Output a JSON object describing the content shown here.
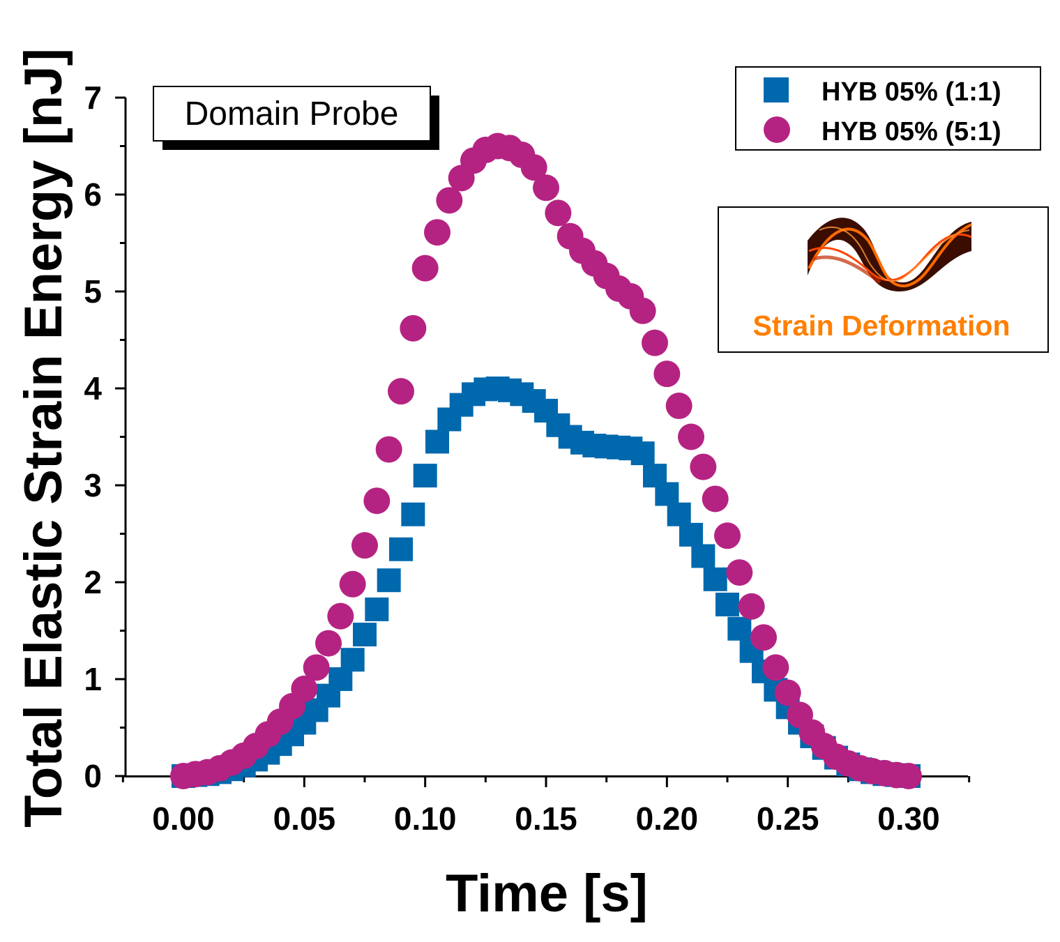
{
  "chart_data": {
    "type": "scatter",
    "xlabel": "Time [s]",
    "ylabel": "Total Elastic Strain Energy [nJ]",
    "xlim": [
      -0.025,
      0.325
    ],
    "ylim": [
      0,
      7
    ],
    "xticks": [
      0.0,
      0.05,
      0.1,
      0.15,
      0.2,
      0.25,
      0.3
    ],
    "xtick_labels": [
      "0.00",
      "0.05",
      "0.10",
      "0.15",
      "0.20",
      "0.25",
      "0.30"
    ],
    "yticks": [
      0,
      1,
      2,
      3,
      4,
      5,
      6,
      7
    ],
    "ytick_labels": [
      "0",
      "1",
      "2",
      "3",
      "4",
      "5",
      "6",
      "7"
    ],
    "legend_position": "top-right",
    "x": [
      0.0,
      0.005,
      0.01,
      0.015,
      0.02,
      0.025,
      0.03,
      0.035,
      0.04,
      0.045,
      0.05,
      0.055,
      0.06,
      0.065,
      0.07,
      0.075,
      0.08,
      0.085,
      0.09,
      0.095,
      0.1,
      0.105,
      0.11,
      0.115,
      0.12,
      0.125,
      0.13,
      0.135,
      0.14,
      0.145,
      0.15,
      0.155,
      0.16,
      0.165,
      0.17,
      0.175,
      0.18,
      0.185,
      0.19,
      0.195,
      0.2,
      0.205,
      0.21,
      0.215,
      0.22,
      0.225,
      0.23,
      0.235,
      0.24,
      0.245,
      0.25,
      0.255,
      0.26,
      0.265,
      0.27,
      0.275,
      0.28,
      0.285,
      0.29,
      0.295,
      0.3
    ],
    "series": [
      {
        "name": "HYB 05% (1:1)",
        "marker": "square",
        "color": "#0068AD",
        "values": [
          0.0,
          0.01,
          0.02,
          0.04,
          0.07,
          0.11,
          0.17,
          0.24,
          0.33,
          0.43,
          0.55,
          0.68,
          0.83,
          1.0,
          1.2,
          1.46,
          1.72,
          2.02,
          2.34,
          2.7,
          3.1,
          3.45,
          3.68,
          3.83,
          3.94,
          3.99,
          4.0,
          3.98,
          3.94,
          3.87,
          3.77,
          3.62,
          3.5,
          3.44,
          3.41,
          3.4,
          3.39,
          3.38,
          3.33,
          3.1,
          2.91,
          2.7,
          2.49,
          2.27,
          2.03,
          1.77,
          1.52,
          1.29,
          1.08,
          0.89,
          0.71,
          0.55,
          0.41,
          0.29,
          0.19,
          0.12,
          0.07,
          0.04,
          0.02,
          0.01,
          0.0
        ]
      },
      {
        "name": "HYB 05% (5:1)",
        "marker": "circle",
        "color": "#B52382",
        "values": [
          0.0,
          0.02,
          0.04,
          0.08,
          0.14,
          0.21,
          0.31,
          0.43,
          0.56,
          0.72,
          0.9,
          1.12,
          1.37,
          1.65,
          1.98,
          2.38,
          2.84,
          3.37,
          3.97,
          4.62,
          5.24,
          5.61,
          5.94,
          6.17,
          6.35,
          6.46,
          6.5,
          6.48,
          6.41,
          6.28,
          6.07,
          5.81,
          5.57,
          5.42,
          5.29,
          5.16,
          5.03,
          4.95,
          4.8,
          4.47,
          4.15,
          3.82,
          3.5,
          3.19,
          2.86,
          2.48,
          2.1,
          1.75,
          1.43,
          1.12,
          0.86,
          0.63,
          0.45,
          0.31,
          0.2,
          0.13,
          0.08,
          0.05,
          0.03,
          0.01,
          0.0
        ]
      }
    ],
    "annotations": {
      "box_label": "Domain Probe",
      "inset_caption": "Strain Deformation"
    }
  },
  "colors": {
    "series1": "#0068AD",
    "series2": "#B52382",
    "inset_caption": "#FF7F00"
  },
  "icons": {
    "inset_image": "strain-deformation-ribbon-icon"
  }
}
